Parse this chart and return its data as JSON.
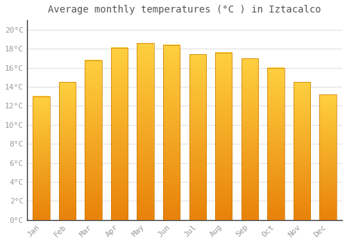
{
  "title": "Average monthly temperatures (°C ) in Iztacalco",
  "months": [
    "Jan",
    "Feb",
    "Mar",
    "Apr",
    "May",
    "Jun",
    "Jul",
    "Aug",
    "Sep",
    "Oct",
    "Nov",
    "Dec"
  ],
  "values": [
    13.0,
    14.5,
    16.8,
    18.1,
    18.6,
    18.4,
    17.4,
    17.6,
    17.0,
    16.0,
    14.5,
    13.2
  ],
  "bar_color_bottom": "#E8820A",
  "bar_color_top": "#FFD040",
  "ylim": [
    0,
    21
  ],
  "yticks": [
    0,
    2,
    4,
    6,
    8,
    10,
    12,
    14,
    16,
    18,
    20
  ],
  "background_color": "#FFFFFF",
  "grid_color": "#E0E0E0",
  "title_fontsize": 10,
  "tick_fontsize": 8,
  "font_family": "monospace",
  "tick_color": "#999999",
  "spine_color": "#333333"
}
